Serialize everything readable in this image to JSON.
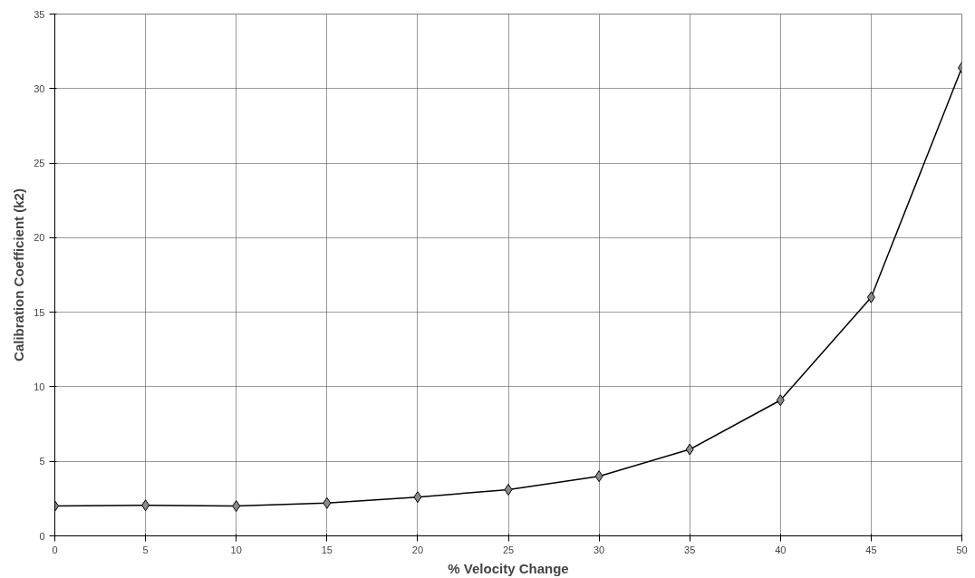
{
  "chart_data": {
    "type": "line",
    "xlabel": "% Velocity Change",
    "ylabel": "Calibration Coefficient (k2)",
    "x": [
      0,
      5,
      10,
      15,
      20,
      25,
      30,
      35,
      40,
      45,
      50
    ],
    "series": [
      {
        "color": "#000000",
        "values": [
          2.0,
          2.05,
          2.0,
          2.2,
          2.6,
          3.1,
          4.0,
          5.8,
          9.1,
          16.0,
          31.4
        ]
      }
    ],
    "xlim": [
      0,
      50
    ],
    "ylim": [
      0,
      35
    ],
    "xticks": [
      0,
      5,
      10,
      15,
      20,
      25,
      30,
      35,
      40,
      45,
      50
    ],
    "yticks": [
      0,
      5,
      10,
      15,
      20,
      25,
      30,
      35
    ],
    "grid": true,
    "marker": "diamond",
    "line_style": "solid"
  }
}
